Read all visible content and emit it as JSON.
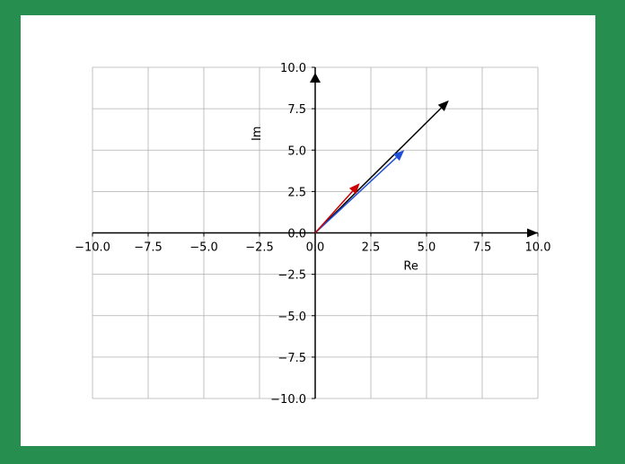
{
  "colors": {
    "frame": "#268f4f",
    "background": "#ffffff",
    "grid": "#b0b0b0",
    "axis": "#000000"
  },
  "chart_data": {
    "type": "vector-plot",
    "title": "",
    "xlabel": "Re",
    "ylabel": "Im",
    "xlim": [
      -10,
      10
    ],
    "ylim": [
      -10,
      10
    ],
    "grid": true,
    "xticks": [
      -10.0,
      -7.5,
      -5.0,
      -2.5,
      0.0,
      2.5,
      5.0,
      7.5,
      10.0
    ],
    "yticks": [
      -10.0,
      -7.5,
      -5.0,
      -2.5,
      0.0,
      2.5,
      5.0,
      7.5,
      10.0
    ],
    "xtick_labels": [
      "−10.0",
      "−7.5",
      "−5.0",
      "−2.5",
      "0.0",
      "2.5",
      "5.0",
      "7.5",
      "10.0"
    ],
    "ytick_labels": [
      "−10.0",
      "−7.5",
      "−5.0",
      "−2.5",
      "0.0",
      "2.5",
      "5.0",
      "7.5",
      "10.0"
    ],
    "vectors": [
      {
        "x": 2.0,
        "y": 3.0,
        "color": "#cc0000"
      },
      {
        "x": 4.0,
        "y": 5.0,
        "color": "#1f4fd6"
      },
      {
        "x": 6.0,
        "y": 8.0,
        "color": "#000000"
      }
    ]
  }
}
